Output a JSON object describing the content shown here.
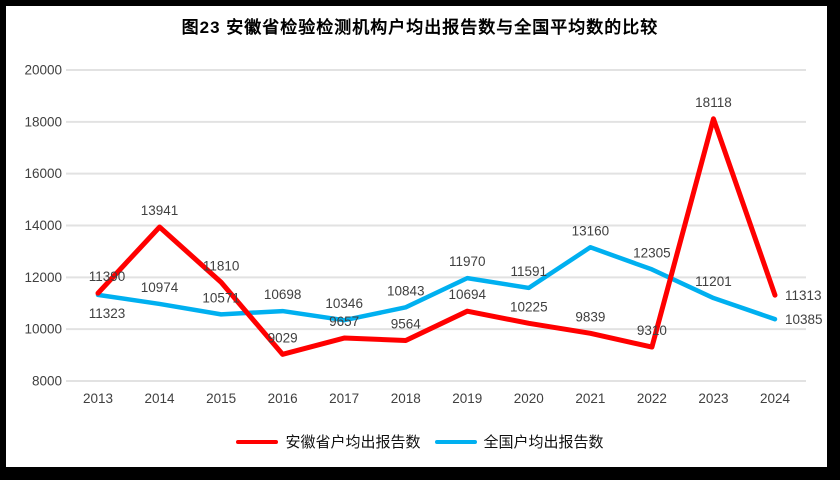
{
  "chart_data": {
    "type": "line",
    "title": "图23 安徽省检验检测机构户均出报告数与全国平均数的比较",
    "categories": [
      "2013",
      "2014",
      "2015",
      "2016",
      "2017",
      "2018",
      "2019",
      "2020",
      "2021",
      "2022",
      "2023",
      "2024"
    ],
    "series": [
      {
        "name": "安徽省户均出报告数",
        "color": "#FF0000",
        "values": [
          11390,
          13941,
          11810,
          9029,
          9657,
          9564,
          10694,
          10225,
          9839,
          9310,
          18118,
          11313
        ]
      },
      {
        "name": "全国户均出报告数",
        "color": "#00B0F0",
        "values": [
          11323,
          10974,
          10571,
          10698,
          10346,
          10843,
          11970,
          11591,
          13160,
          12305,
          11201,
          10385
        ]
      }
    ],
    "ylim": [
      8000,
      20000
    ],
    "ytick_step": 2000,
    "yticks": [
      "8000",
      "10000",
      "12000",
      "14000",
      "16000",
      "18000",
      "20000"
    ],
    "grid": true,
    "gridline_color": "#E2E2E2",
    "axis_text_color": "#404040",
    "data_labels": true,
    "legend_position": "bottom"
  }
}
